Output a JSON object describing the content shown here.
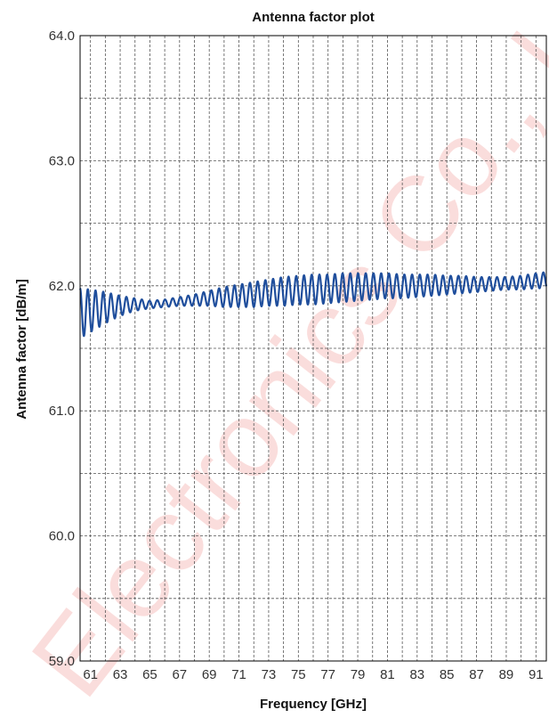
{
  "chart_data": {
    "type": "line",
    "title": "Antenna factor plot",
    "xlabel": "Frequency [GHz]",
    "ylabel": "Antenna factor [dB/m]",
    "xlim": [
      60.3,
      91.7
    ],
    "ylim": [
      59.0,
      64.0
    ],
    "x_ticks": [
      61,
      63,
      65,
      67,
      69,
      71,
      73,
      75,
      77,
      79,
      81,
      83,
      85,
      87,
      89,
      91
    ],
    "x_tick_labels": [
      "61",
      "63",
      "65",
      "67",
      "69",
      "71",
      "73",
      "75",
      "77",
      "79",
      "81",
      "83",
      "85",
      "87",
      "89",
      "91"
    ],
    "y_ticks": [
      59.0,
      60.0,
      61.0,
      62.0,
      63.0,
      64.0
    ],
    "y_tick_labels": [
      "59.0",
      "60.0",
      "61.0",
      "62.0",
      "63.0",
      "64.0"
    ],
    "grid": true,
    "series_color": "#1f4e9c",
    "series": [
      {
        "x": [
          60.3,
          61.0,
          62.0,
          63.0,
          64.0,
          65.0,
          66.0,
          67.0,
          68.0,
          69.0,
          70.0,
          71.0,
          72.0,
          73.0,
          74.0,
          75.0,
          76.0,
          77.0,
          78.0,
          79.0,
          80.0,
          81.0,
          82.0,
          83.0,
          84.0,
          85.0,
          86.0,
          87.0,
          88.0,
          89.0,
          90.0,
          91.0,
          91.7
        ],
        "max": [
          61.98,
          61.97,
          61.95,
          61.92,
          61.9,
          61.88,
          61.89,
          61.91,
          61.93,
          61.96,
          61.99,
          62.01,
          62.03,
          62.05,
          62.07,
          62.08,
          62.09,
          62.09,
          62.1,
          62.1,
          62.1,
          62.1,
          62.09,
          62.09,
          62.09,
          62.08,
          62.08,
          62.07,
          62.07,
          62.07,
          62.08,
          62.1,
          62.11
        ],
        "min": [
          61.58,
          61.63,
          61.7,
          61.76,
          61.8,
          61.82,
          61.83,
          61.84,
          61.84,
          61.84,
          61.83,
          61.83,
          61.83,
          61.84,
          61.84,
          61.85,
          61.85,
          61.86,
          61.87,
          61.88,
          61.89,
          61.9,
          61.9,
          61.91,
          61.92,
          61.93,
          61.94,
          61.95,
          61.96,
          61.97,
          61.97,
          61.98,
          61.98
        ],
        "oscillation_period_ghz": 0.52
      }
    ]
  },
  "watermark": {
    "text": "Electronics Co., Ltd.",
    "color": "#e6352b"
  }
}
